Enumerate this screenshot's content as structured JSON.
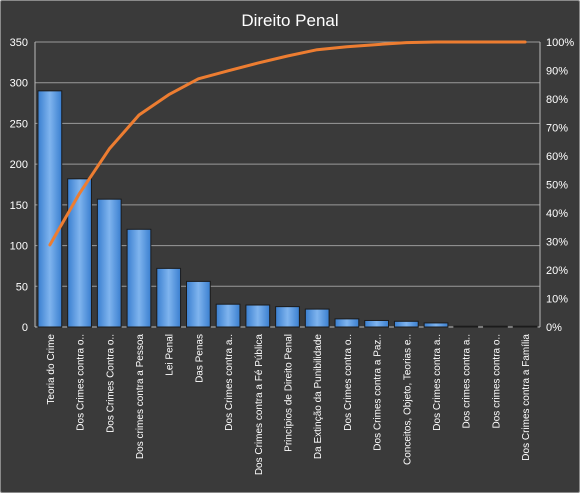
{
  "chart_data": {
    "type": "bar",
    "title": "Direito Penal",
    "categories": [
      "Teoria do Crime",
      "Dos Crimes contra o..",
      "Dos Crimes Contra o..",
      "Dos crimes contra a Pessoa",
      "Lei Penal",
      "Das Penas",
      "Dos Crimes contra a..",
      "Dos Crimes contra a Fé Pública",
      "Princípios de Direito Penal",
      "Da Extinção da Punibilidade",
      "Dos Crimes contra o..",
      "Dos Crimes contra a Paz..",
      "Conceitos, Objeto, Teorias e..",
      "Dos Crimes contra a..",
      "Dos crimes contra a..",
      "Dos crimes contra o..",
      "Dos Crimes contra a Família"
    ],
    "series": [
      {
        "type": "bar",
        "axis": "left",
        "color": "#4a90e2",
        "values": [
          290,
          182,
          157,
          120,
          72,
          56,
          28,
          27,
          25,
          22,
          10,
          8,
          7,
          5,
          1,
          1,
          1
        ]
      },
      {
        "type": "line",
        "axis": "right",
        "color": "#ed7d31",
        "values": [
          28.8,
          46.9,
          62.5,
          74.4,
          81.5,
          87.1,
          89.9,
          92.6,
          95.1,
          97.3,
          98.3,
          99.1,
          99.8,
          100.0,
          100.0,
          100.0,
          100.0
        ]
      }
    ],
    "y_left": {
      "min": 0,
      "max": 350,
      "ticks": [
        0,
        50,
        100,
        150,
        200,
        250,
        300,
        350
      ]
    },
    "y_right": {
      "min": 0,
      "max": 100,
      "ticks": [
        "0%",
        "10%",
        "20%",
        "30%",
        "40%",
        "50%",
        "60%",
        "70%",
        "80%",
        "90%",
        "100%"
      ]
    },
    "grid": true,
    "legend": "none"
  }
}
